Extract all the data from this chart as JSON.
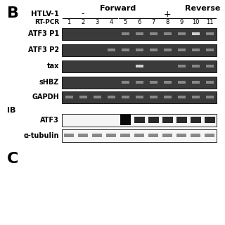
{
  "background_color": "#ffffff",
  "panel_label": "B",
  "panel_label_C": "C",
  "forward_label": "Forward",
  "reverse_label": "Reverse",
  "htlv1_label": "HTLV-1",
  "htlv1_neg": "-",
  "htlv1_pos": "+",
  "rtpcr_label": "RT-PCR",
  "ib_label": "IB",
  "lane_numbers": [
    "1",
    "2",
    "3",
    "4",
    "5",
    "6",
    "7",
    "8",
    "9",
    "10",
    "11"
  ],
  "gel_bg": "#3a3a3a",
  "band_color_gel": "#888888",
  "band_color_bright": "#d0d0d0",
  "band_color_dim": "#666666",
  "ib_bg": "#f5f5f5",
  "band_color_ib_black": "#080808",
  "band_color_ib_dark": "#282828",
  "band_color_ib_mid": "#555555",
  "band_color_ib_tubulin": "#888888",
  "atf3p1_bands": [
    4,
    5,
    6,
    7,
    8,
    9,
    10
  ],
  "atf3p1_bright": [
    9
  ],
  "atf3p2_bands": [
    3,
    4,
    5,
    6,
    7,
    8,
    9,
    10
  ],
  "tax_bands": [
    5,
    8,
    9,
    10
  ],
  "tax_bright": [
    5
  ],
  "shbz_bands": [
    4,
    5,
    6,
    7,
    8,
    9,
    10
  ],
  "gapdh_bands": [
    0,
    1,
    2,
    3,
    4,
    5,
    6,
    7,
    8,
    9,
    10
  ],
  "atf3_ib_dark": [
    4,
    5,
    6,
    7,
    8,
    9,
    10
  ],
  "atf3_ib_black": [
    4
  ],
  "tubulin_bands": [
    0,
    1,
    2,
    3,
    4,
    5,
    6,
    7,
    8,
    9,
    10
  ]
}
